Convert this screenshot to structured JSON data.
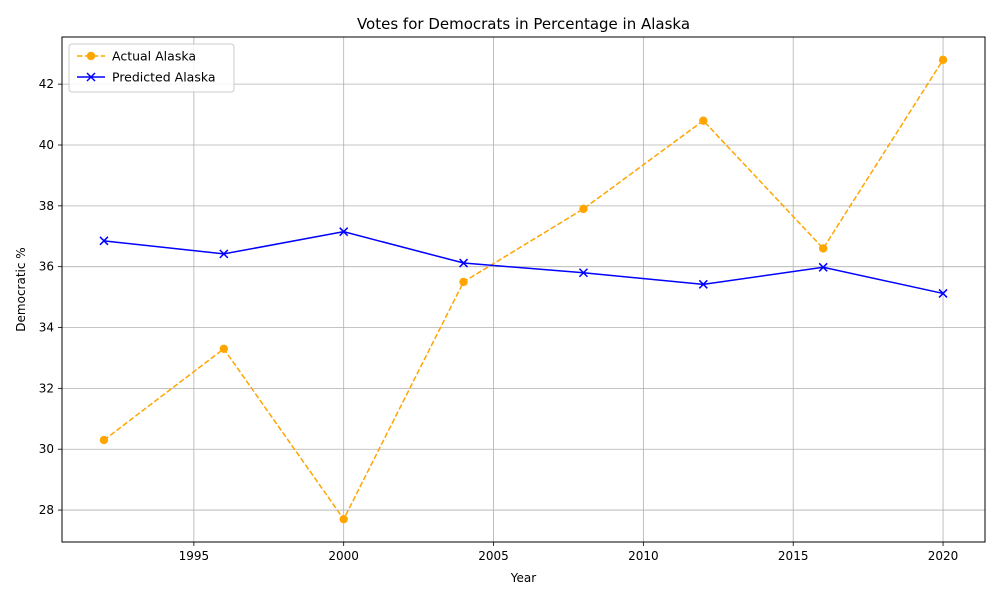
{
  "chart_data": {
    "type": "line",
    "title": "Votes for Democrats in Percentage in Alaska",
    "xlabel": "Year",
    "ylabel": "Democratic %",
    "xlim": [
      1990.6,
      2021.4
    ],
    "ylim": [
      26.95,
      43.55
    ],
    "xticks": [
      1995,
      2000,
      2005,
      2010,
      2015,
      2020
    ],
    "yticks": [
      28,
      30,
      32,
      34,
      36,
      38,
      40,
      42
    ],
    "grid": true,
    "legend_position": "top-left",
    "x": [
      1992,
      1996,
      2000,
      2004,
      2008,
      2012,
      2016,
      2020
    ],
    "series": [
      {
        "name": "Actual Alaska",
        "values": [
          30.3,
          33.3,
          27.7,
          35.5,
          37.9,
          40.8,
          36.6,
          42.8
        ],
        "color": "#ffa500",
        "line_style": "dashed",
        "marker": "circle"
      },
      {
        "name": "Predicted Alaska",
        "values": [
          36.85,
          36.42,
          37.15,
          36.12,
          35.8,
          35.42,
          35.98,
          35.12
        ],
        "color": "#0000ff",
        "line_style": "solid",
        "marker": "x"
      }
    ]
  }
}
